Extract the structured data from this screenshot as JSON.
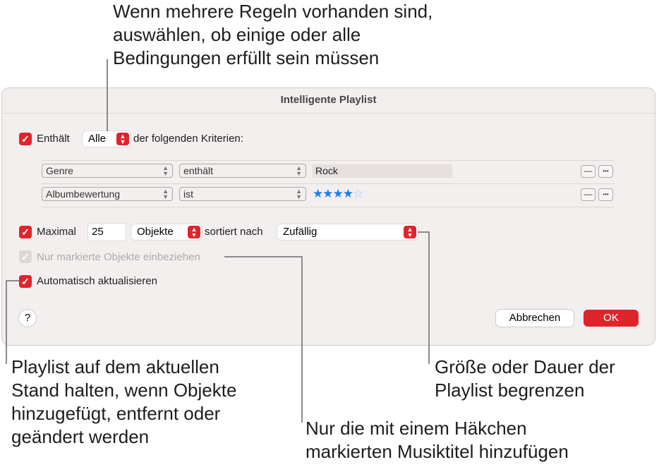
{
  "callouts": {
    "top": [
      "Wenn mehrere Regeln vorhanden sind,",
      "auswählen, ob einige oder alle",
      "Bedingungen erfüllt sein müssen"
    ],
    "left": [
      "Playlist auf dem aktuellen",
      "Stand halten, wenn Objekte",
      "hinzugefügt, entfernt oder",
      "geändert werden"
    ],
    "middle": [
      "Nur die mit einem Häkchen",
      "markierten Musiktitel hinzufügen"
    ],
    "right": [
      "Größe oder Dauer der",
      "Playlist begrenzen"
    ]
  },
  "dialog": {
    "title": "Intelligente Playlist",
    "match": {
      "checked": true,
      "label": "Enthält",
      "value": "Alle",
      "suffix": "der folgenden Kriterien:"
    },
    "rules": [
      {
        "field": "Genre",
        "operator": "enthält",
        "value": "Rock"
      },
      {
        "field": "Albumbewertung",
        "operator": "ist",
        "rating": 4,
        "rating_max": 5,
        "stars_filled": "★★★★",
        "stars_empty": "☆"
      }
    ],
    "remove_label": "—",
    "more_label": "•••",
    "limit": {
      "checked": true,
      "label": "Maximal",
      "value": "25",
      "unit": "Objekte",
      "sorted_label": "sortiert nach",
      "sort": "Zufällig"
    },
    "only_checked": {
      "checked": true,
      "enabled": false,
      "label": "Nur markierte Objekte einbeziehen"
    },
    "live_update": {
      "checked": true,
      "label": "Automatisch aktualisieren"
    },
    "help_label": "?",
    "cancel_label": "Abbrechen",
    "ok_label": "OK"
  },
  "colors": {
    "accent": "#e0242c",
    "star": "#1a7cf5"
  }
}
